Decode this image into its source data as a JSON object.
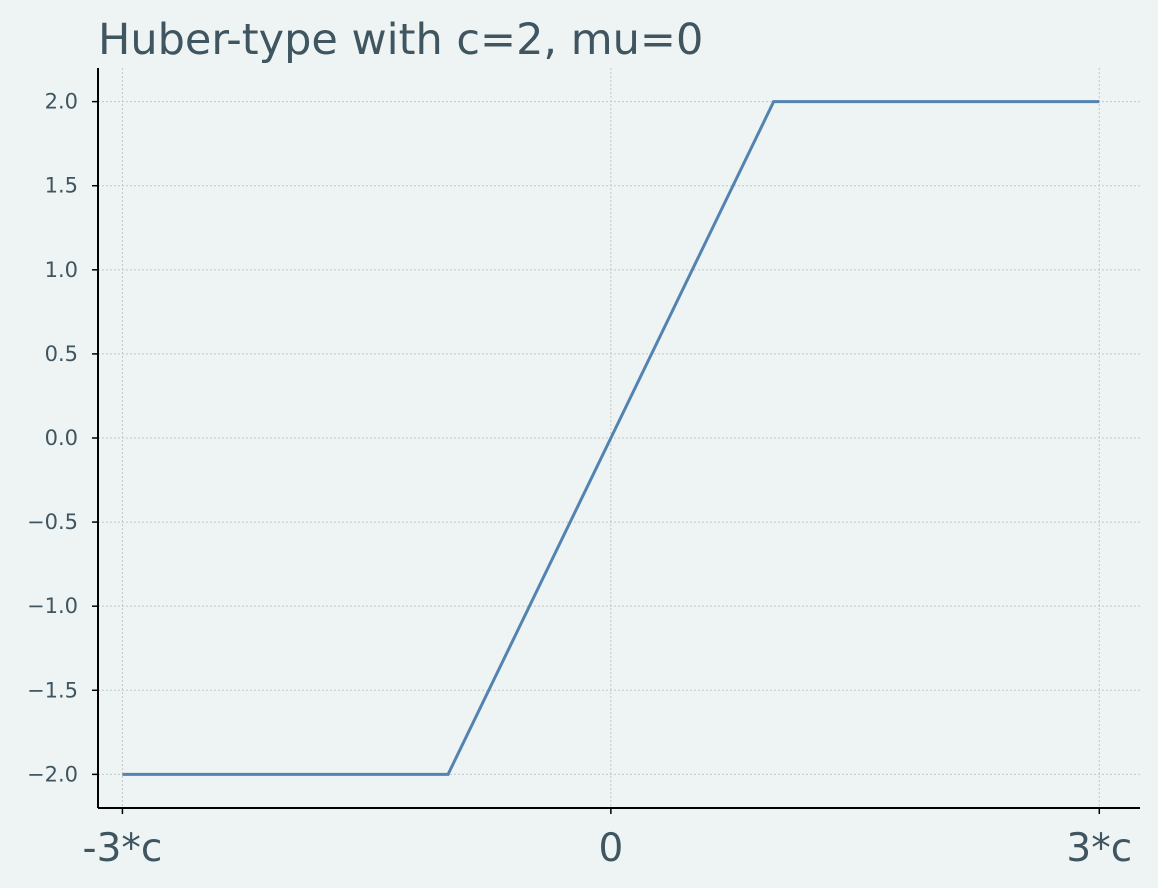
{
  "chart_data": {
    "type": "line",
    "title": "Huber-type with c=2, mu=0",
    "xlabel": "",
    "ylabel": "",
    "xlim": [
      -6.3,
      6.5
    ],
    "ylim": [
      -2.2,
      2.2
    ],
    "grid": true,
    "x_ticks": [
      {
        "value": -6,
        "label": "-3*c"
      },
      {
        "value": 0,
        "label": "0"
      },
      {
        "value": 6,
        "label": "3*c"
      }
    ],
    "y_ticks": [
      {
        "value": 2.0,
        "label": "2.0"
      },
      {
        "value": 1.5,
        "label": "1.5"
      },
      {
        "value": 1.0,
        "label": "1.0"
      },
      {
        "value": 0.5,
        "label": "0.5"
      },
      {
        "value": 0.0,
        "label": "0.0"
      },
      {
        "value": -0.5,
        "label": "−0.5"
      },
      {
        "value": -1.0,
        "label": "−1.0"
      },
      {
        "value": -1.5,
        "label": "−1.5"
      },
      {
        "value": -2.0,
        "label": "−2.0"
      }
    ],
    "series": [
      {
        "x": [
          -6,
          -2,
          2,
          6
        ],
        "y": [
          -2,
          -2,
          2,
          2
        ],
        "color": "#5383b1"
      }
    ]
  }
}
